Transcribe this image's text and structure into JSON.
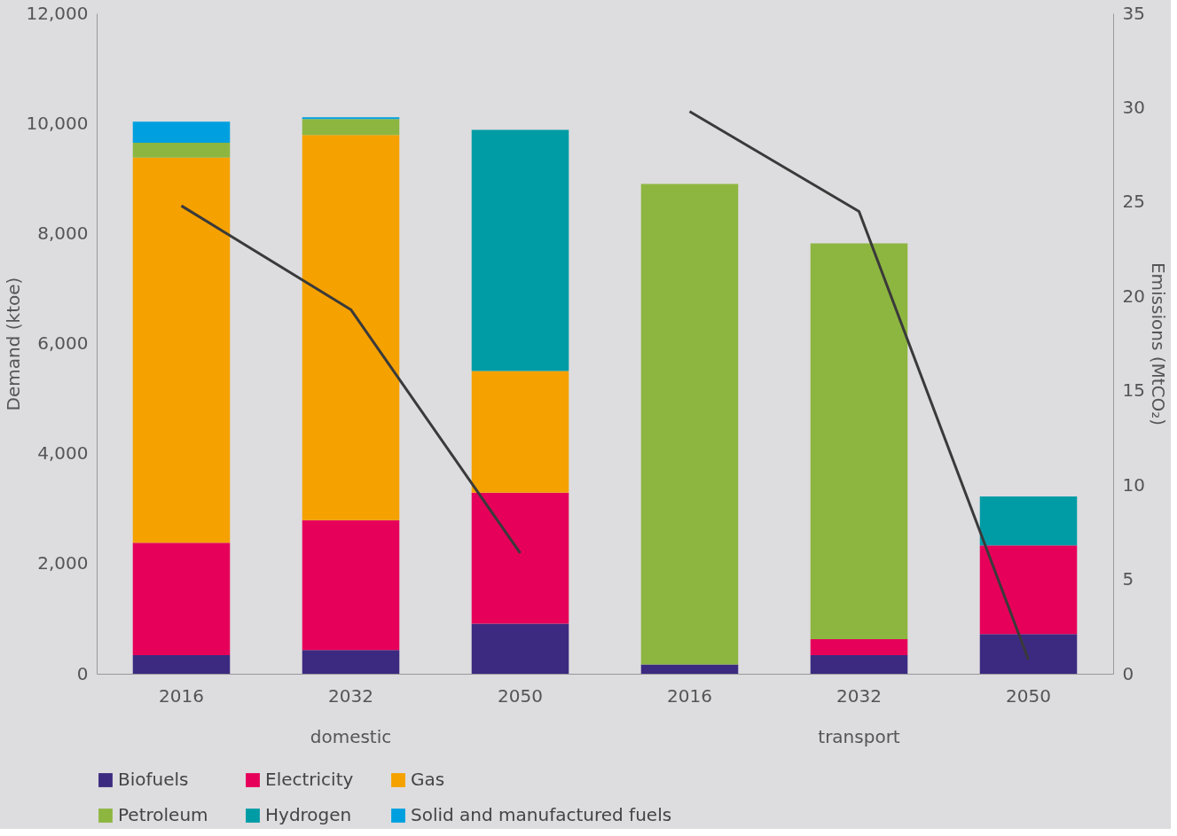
{
  "chart_data": {
    "type": "bar",
    "stacked": true,
    "categories": [
      "2016",
      "2032",
      "2050",
      "2016",
      "2032",
      "2050"
    ],
    "ylabel": "Demand (ktoe)",
    "y2label": "Emissions (MtCO₂)",
    "ylim": [
      0,
      12000
    ],
    "yticks": [
      {
        "value": 0,
        "label": "0"
      },
      {
        "value": 2000,
        "label": "2,000"
      },
      {
        "value": 4000,
        "label": "4,000"
      },
      {
        "value": 6000,
        "label": "6,000"
      },
      {
        "value": 8000,
        "label": "8,000"
      },
      {
        "value": 10000,
        "label": "10,000"
      },
      {
        "value": 12000,
        "label": "12,000"
      }
    ],
    "y2lim": [
      0,
      35
    ],
    "y2ticks": [
      0,
      5,
      10,
      15,
      20,
      25,
      30,
      35
    ],
    "annotations": [
      "domestic",
      "transport"
    ],
    "legend": "bottom",
    "series": [
      {
        "name": "Biofuels",
        "color": "#3c2a80",
        "values": [
          340,
          430,
          910,
          170,
          340,
          720
        ]
      },
      {
        "name": "Electricity",
        "color": "#e6005a",
        "values": [
          2040,
          2360,
          2380,
          0,
          290,
          1610
        ]
      },
      {
        "name": "Gas",
        "color": "#f5a100",
        "values": [
          7000,
          7000,
          2210,
          0,
          0,
          0
        ]
      },
      {
        "name": "Petroleum",
        "color": "#8db640",
        "values": [
          270,
          290,
          0,
          8730,
          7190,
          0
        ]
      },
      {
        "name": "Hydrogen",
        "color": "#009ca6",
        "values": [
          0,
          0,
          4380,
          0,
          0,
          890
        ]
      },
      {
        "name": "Solid and manufactured fuels",
        "color": "#00a0e0",
        "values": [
          380,
          30,
          0,
          0,
          0,
          0
        ]
      },
      {
        "type": "line",
        "axis": "y2",
        "color": "#3a3a3a",
        "values": [
          24.8,
          19.3,
          6.4,
          null,
          null,
          null
        ]
      },
      {
        "type": "line",
        "axis": "y2",
        "color": "#3a3a3a",
        "values": [
          null,
          null,
          null,
          29.8,
          24.5,
          0.75
        ]
      }
    ]
  }
}
